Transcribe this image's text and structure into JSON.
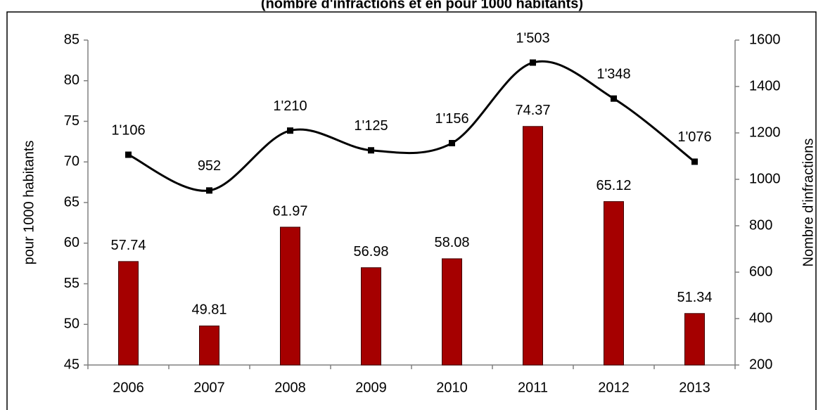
{
  "chart_data": {
    "type": "bar",
    "title": "(nombre d'infractions et en pour 1000 habitants)",
    "categories": [
      "2006",
      "2007",
      "2008",
      "2009",
      "2010",
      "2011",
      "2012",
      "2013"
    ],
    "series": [
      {
        "name": "pour 1000 habitants",
        "type": "bar",
        "color": "#a50000",
        "values": [
          57.74,
          49.81,
          61.97,
          56.98,
          58.08,
          74.37,
          65.12,
          51.34
        ]
      },
      {
        "name": "Nombre d'infractions",
        "type": "line",
        "axis": "y2",
        "color": "#000000",
        "values": [
          1106,
          952,
          1210,
          1125,
          1156,
          1503,
          1348,
          1076
        ],
        "value_labels": [
          "1'106",
          "952",
          "1'210",
          "1'125",
          "1'156",
          "1'503",
          "1'348",
          "1'076"
        ]
      }
    ],
    "ylabel": "pour 1000 habitants",
    "y2label": "Nombre d'infractions",
    "ylim": [
      45,
      85
    ],
    "yticks": [
      45,
      50,
      55,
      60,
      65,
      70,
      75,
      80,
      85
    ],
    "y2lim": [
      200,
      1600
    ],
    "y2ticks": [
      200,
      400,
      600,
      800,
      1000,
      1200,
      1400,
      1600
    ],
    "grid": false
  }
}
